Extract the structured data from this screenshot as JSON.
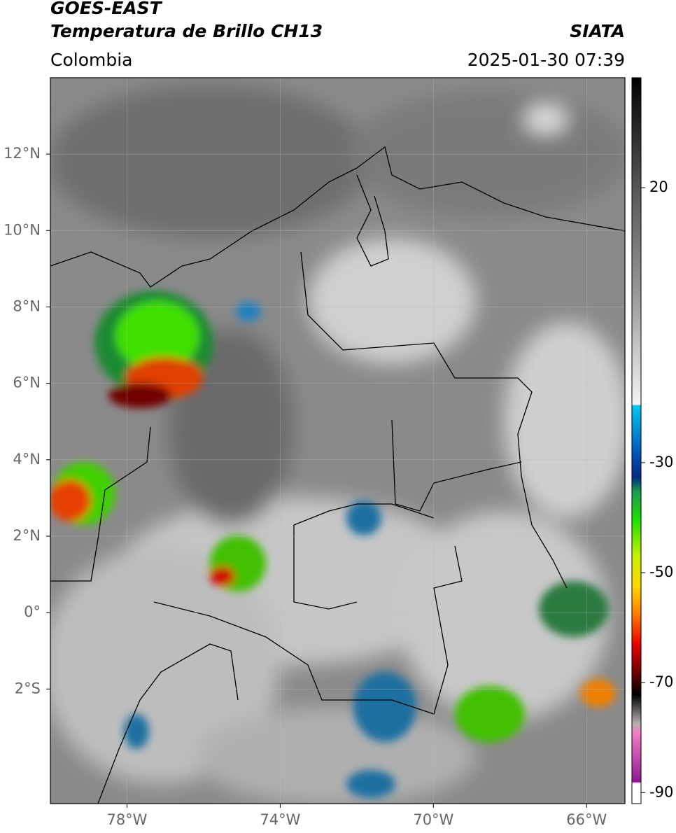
{
  "header": {
    "title": "GOES-EAST",
    "subtitle": "Temperatura de Brillo CH13",
    "region": "Colombia",
    "source": "SIATA",
    "timestamp": "2025-01-30 07:39"
  },
  "map": {
    "lon_range": [
      -80,
      -65
    ],
    "lat_range": [
      -5,
      14
    ],
    "lon_ticks": [
      {
        "value": -78,
        "label": "78°W"
      },
      {
        "value": -74,
        "label": "74°W"
      },
      {
        "value": -70,
        "label": "70°W"
      },
      {
        "value": -66,
        "label": "66°W"
      }
    ],
    "lat_ticks": [
      {
        "value": 12,
        "label": "12°N"
      },
      {
        "value": 10,
        "label": "10°N"
      },
      {
        "value": 8,
        "label": "8°N"
      },
      {
        "value": 6,
        "label": "6°N"
      },
      {
        "value": 4,
        "label": "4°N"
      },
      {
        "value": 2,
        "label": "2°N"
      },
      {
        "value": 0,
        "label": "0°"
      },
      {
        "value": -2,
        "label": "2°S"
      }
    ]
  },
  "colorbar": {
    "range": [
      -92,
      40
    ],
    "ticks": [
      20,
      -30,
      -50,
      -70,
      -90
    ]
  }
}
